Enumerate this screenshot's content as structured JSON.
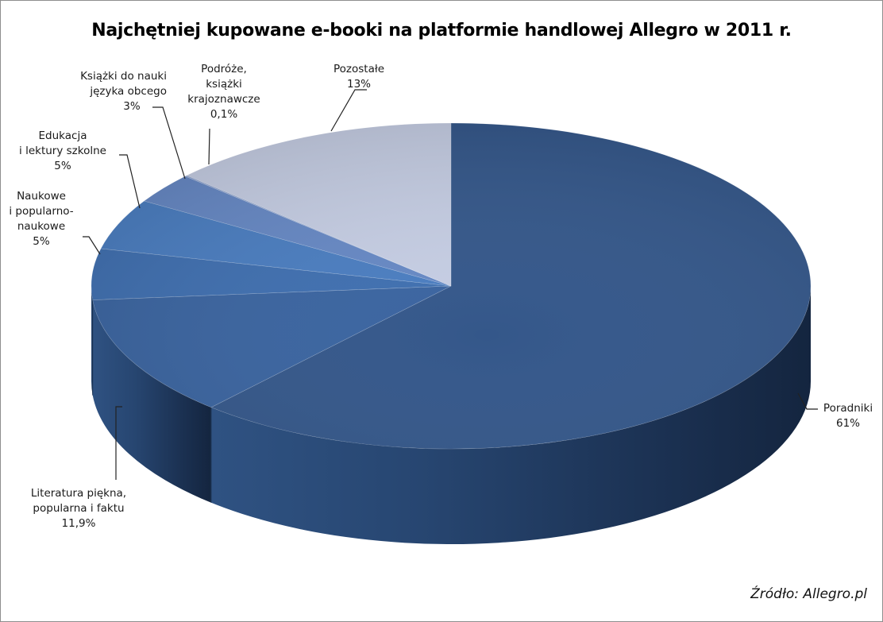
{
  "chart_data": {
    "type": "pie",
    "title": "Najchętniej kupowane e-booki na platformie handlowej Allegro w 2011 r.",
    "slices": [
      {
        "key": "poradniki",
        "label_lines": [
          "Poradniki"
        ],
        "value": 61,
        "value_label": "61%",
        "color": "#34578a"
      },
      {
        "key": "literatura",
        "label_lines": [
          "Literatura piękna,",
          "popularna i faktu"
        ],
        "value": 11.9,
        "value_label": "11,9%",
        "color": "#3a64a0"
      },
      {
        "key": "naukowe",
        "label_lines": [
          "Naukowe",
          "i popularno-",
          "naukowe"
        ],
        "value": 5,
        "value_label": "5%",
        "color": "#3f6fb0"
      },
      {
        "key": "edukacja",
        "label_lines": [
          "Edukacja",
          "i lektury szkolne"
        ],
        "value": 5,
        "value_label": "5%",
        "color": "#4a7dc0"
      },
      {
        "key": "jezyki",
        "label_lines": [
          "Książki do nauki",
          "języka obcego"
        ],
        "value": 3,
        "value_label": "3%",
        "color": "#6688c4"
      },
      {
        "key": "podroze",
        "label_lines": [
          "Podróże,",
          "książki",
          "krajoznawcze"
        ],
        "value": 0.1,
        "value_label": "0,1%",
        "color": "#8ea4d0"
      },
      {
        "key": "pozostale",
        "label_lines": [
          "Pozostałe"
        ],
        "value": 13,
        "value_label": "13%",
        "color": "#c5cde3"
      }
    ]
  },
  "source": "Źródło: Allegro.pl"
}
